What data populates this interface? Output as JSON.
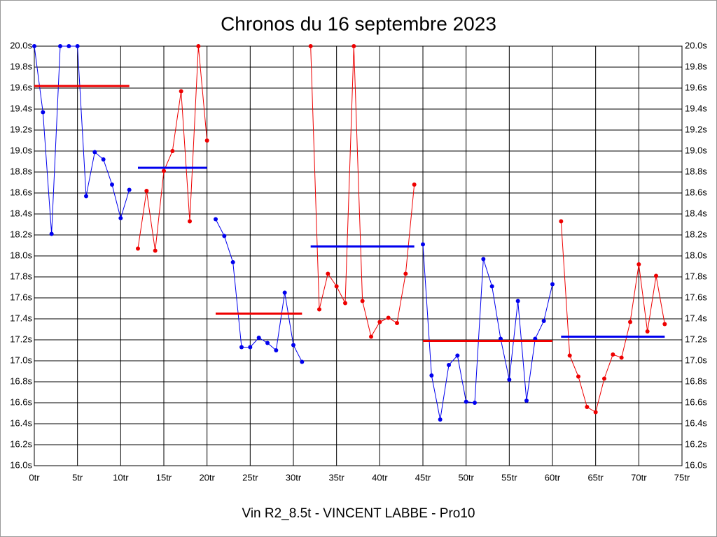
{
  "chart_data": {
    "type": "line",
    "title": "Chronos du 16 septembre 2023",
    "xlabel": "Vin R2_8.5t - VINCENT LABBE - Pro10",
    "xlim": [
      0,
      75
    ],
    "xticks": [
      {
        "value": 0,
        "label": "0tr"
      },
      {
        "value": 5,
        "label": "5tr"
      },
      {
        "value": 10,
        "label": "10tr"
      },
      {
        "value": 15,
        "label": "15tr"
      },
      {
        "value": 20,
        "label": "20tr"
      },
      {
        "value": 25,
        "label": "25tr"
      },
      {
        "value": 30,
        "label": "30tr"
      },
      {
        "value": 35,
        "label": "35tr"
      },
      {
        "value": 40,
        "label": "40tr"
      },
      {
        "value": 45,
        "label": "45tr"
      },
      {
        "value": 50,
        "label": "50tr"
      },
      {
        "value": 55,
        "label": "55tr"
      },
      {
        "value": 60,
        "label": "60tr"
      },
      {
        "value": 65,
        "label": "65tr"
      },
      {
        "value": 70,
        "label": "70tr"
      },
      {
        "value": 75,
        "label": "75tr"
      }
    ],
    "ylim": [
      16.0,
      20.0
    ],
    "yticks": [
      {
        "value": 16.0,
        "label": "16.0s"
      },
      {
        "value": 16.2,
        "label": "16.2s"
      },
      {
        "value": 16.4,
        "label": "16.4s"
      },
      {
        "value": 16.6,
        "label": "16.6s"
      },
      {
        "value": 16.8,
        "label": "16.8s"
      },
      {
        "value": 17.0,
        "label": "17.0s"
      },
      {
        "value": 17.2,
        "label": "17.2s"
      },
      {
        "value": 17.4,
        "label": "17.4s"
      },
      {
        "value": 17.6,
        "label": "17.6s"
      },
      {
        "value": 17.8,
        "label": "17.8s"
      },
      {
        "value": 18.0,
        "label": "18.0s"
      },
      {
        "value": 18.2,
        "label": "18.2s"
      },
      {
        "value": 18.4,
        "label": "18.4s"
      },
      {
        "value": 18.6,
        "label": "18.6s"
      },
      {
        "value": 18.8,
        "label": "18.8s"
      },
      {
        "value": 19.0,
        "label": "19.0s"
      },
      {
        "value": 19.2,
        "label": "19.2s"
      },
      {
        "value": 19.4,
        "label": "19.4s"
      },
      {
        "value": 19.6,
        "label": "19.6s"
      },
      {
        "value": 19.8,
        "label": "19.8s"
      },
      {
        "value": 20.0,
        "label": "20.0s"
      }
    ],
    "grid": true,
    "series": [
      {
        "color": "#0000ee",
        "x": [
          0,
          1,
          2,
          3,
          4,
          5,
          6,
          7,
          8,
          9,
          10,
          11
        ],
        "values": [
          20.0,
          19.37,
          18.21,
          20.0,
          20.0,
          20.0,
          18.57,
          18.99,
          18.92,
          18.68,
          18.36,
          18.63
        ]
      },
      {
        "color": "#ee0000",
        "x": [
          12,
          13,
          14,
          15,
          16,
          17,
          18,
          19,
          20
        ],
        "values": [
          18.07,
          18.62,
          18.05,
          18.81,
          19.0,
          19.57,
          18.33,
          20.0,
          19.1
        ]
      },
      {
        "color": "#0000ee",
        "x": [
          21,
          22,
          23,
          24,
          25,
          26,
          27,
          28,
          29,
          30,
          31
        ],
        "values": [
          18.35,
          18.19,
          17.94,
          17.13,
          17.13,
          17.22,
          17.17,
          17.1,
          17.65,
          17.15,
          16.99
        ]
      },
      {
        "color": "#ee0000",
        "x": [
          32,
          33,
          34,
          35,
          36,
          37,
          38,
          39,
          40,
          41,
          42,
          43,
          44
        ],
        "values": [
          20.0,
          17.49,
          17.83,
          17.71,
          17.55,
          20.0,
          17.57,
          17.23,
          17.37,
          17.41,
          17.36,
          17.83,
          18.68
        ]
      },
      {
        "color": "#0000ee",
        "x": [
          45,
          46,
          47,
          48,
          49,
          50,
          51,
          52,
          53,
          54,
          55,
          56,
          57,
          58,
          59,
          60
        ],
        "values": [
          18.11,
          16.86,
          16.44,
          16.96,
          17.05,
          16.61,
          16.6,
          17.97,
          17.71,
          17.21,
          16.82,
          17.57,
          16.62,
          17.21,
          17.38,
          17.73
        ]
      },
      {
        "color": "#ee0000",
        "x": [
          61,
          62,
          63,
          64,
          65,
          66,
          67,
          68,
          69,
          70,
          71,
          72,
          73
        ],
        "values": [
          18.33,
          17.05,
          16.85,
          16.56,
          16.51,
          16.83,
          17.06,
          17.03,
          17.37,
          17.92,
          17.28,
          17.81,
          17.35
        ]
      }
    ],
    "averages": [
      {
        "color": "#ee0000",
        "x": [
          0,
          11
        ],
        "value": 19.62
      },
      {
        "color": "#0000ee",
        "x": [
          12,
          20
        ],
        "value": 18.84
      },
      {
        "color": "#ee0000",
        "x": [
          21,
          31
        ],
        "value": 17.45
      },
      {
        "color": "#0000ee",
        "x": [
          32,
          44
        ],
        "value": 18.09
      },
      {
        "color": "#ee0000",
        "x": [
          45,
          60
        ],
        "value": 17.19
      },
      {
        "color": "#0000ee",
        "x": [
          61,
          73
        ],
        "value": 17.23
      }
    ]
  }
}
